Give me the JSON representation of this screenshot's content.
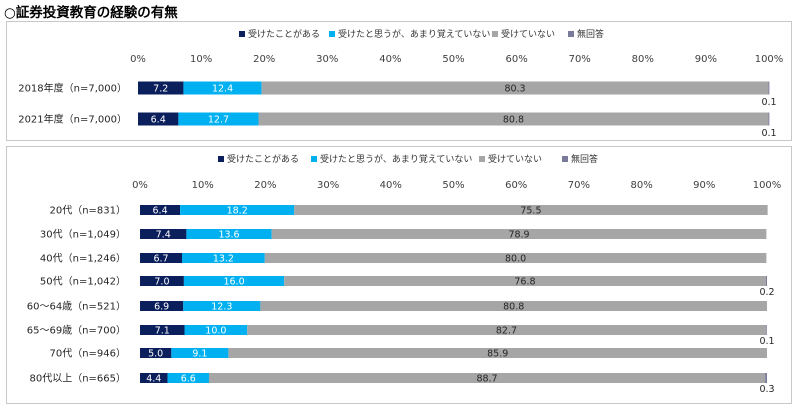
{
  "page_title": "○証券投資教育の経験の有無",
  "colors": {
    "experienced": "#0b1f5c",
    "think_but_forgot": "#00b0f0",
    "not_received": "#a6a6a6",
    "no_answer": "#7a7a9a"
  },
  "chart_data": [
    {
      "type": "bar",
      "orientation": "horizontal",
      "stacked": "percent",
      "legend": [
        "受けたことがある",
        "受けたと思うが、あまり覚えていない",
        "受けていない",
        "無回答"
      ],
      "legend_position": "top",
      "x_ticks": [
        "0%",
        "10%",
        "20%",
        "30%",
        "40%",
        "50%",
        "60%",
        "70%",
        "80%",
        "90%",
        "100%"
      ],
      "xlim": [
        0,
        100
      ],
      "categories": [
        "2018年度（n=7,000）",
        "2021年度（n=7,000）"
      ],
      "series": [
        {
          "name": "受けたことがある",
          "values": [
            7.2,
            6.4
          ]
        },
        {
          "name": "受けたと思うが、あまり覚えていない",
          "values": [
            12.4,
            12.7
          ]
        },
        {
          "name": "受けていない",
          "values": [
            80.3,
            80.8
          ]
        },
        {
          "name": "無回答",
          "values": [
            0.1,
            0.1
          ]
        }
      ],
      "labels": {
        "experienced": [
          "7.2",
          "6.4"
        ],
        "think_but_forgot": [
          "12.4",
          "12.7"
        ],
        "not_received": [
          "80.3",
          "80.8"
        ],
        "no_answer": [
          "0.1",
          "0.1"
        ]
      }
    },
    {
      "type": "bar",
      "orientation": "horizontal",
      "stacked": "percent",
      "legend": [
        "受けたことがある",
        "受けたと思うが、あまり覚えていない",
        "受けていない",
        "無回答"
      ],
      "legend_position": "top",
      "x_ticks": [
        "0%",
        "10%",
        "20%",
        "30%",
        "40%",
        "50%",
        "60%",
        "70%",
        "80%",
        "90%",
        "100%"
      ],
      "xlim": [
        0,
        100
      ],
      "categories": [
        "20代（n=831）",
        "30代（n=1,049）",
        "40代（n=1,246）",
        "50代（n=1,042）",
        "60～64歳（n=521）",
        "65～69歳（n=700）",
        "70代（n=946）",
        "80代以上（n=665）"
      ],
      "series": [
        {
          "name": "受けたことがある",
          "values": [
            6.4,
            7.4,
            6.7,
            7.0,
            6.9,
            7.1,
            5.0,
            4.4
          ]
        },
        {
          "name": "受けたと思うが、あまり覚えていない",
          "values": [
            18.2,
            13.6,
            13.2,
            16.0,
            12.3,
            10.0,
            9.1,
            6.6
          ]
        },
        {
          "name": "受けていない",
          "values": [
            75.5,
            78.9,
            80.0,
            76.8,
            80.8,
            82.7,
            85.9,
            88.7
          ]
        },
        {
          "name": "無回答",
          "values": [
            0.0,
            0.0,
            0.0,
            0.2,
            0.0,
            0.1,
            0.0,
            0.3
          ]
        }
      ],
      "labels": {
        "experienced": [
          "6.4",
          "7.4",
          "6.7",
          "7.0",
          "6.9",
          "7.1",
          "5.0",
          "4.4"
        ],
        "think_but_forgot": [
          "18.2",
          "13.6",
          "13.2",
          "16.0",
          "12.3",
          "10.0",
          "9.1",
          "6.6"
        ],
        "not_received": [
          "75.5",
          "78.9",
          "80.0",
          "76.8",
          "80.8",
          "82.7",
          "85.9",
          "88.7"
        ],
        "no_answer": [
          "",
          "",
          "",
          "0.2",
          "",
          "0.1",
          "",
          "0.3"
        ]
      }
    }
  ]
}
